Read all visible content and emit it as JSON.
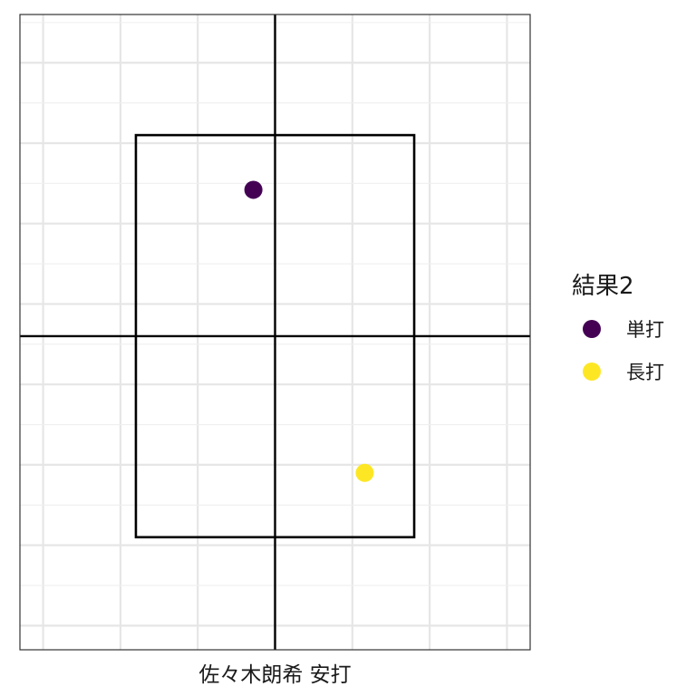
{
  "chart_data": {
    "type": "scatter",
    "title": "",
    "xlabel": "佐々木朗希 安打",
    "ylabel": "",
    "grid": true,
    "legend": {
      "title": "結果2",
      "position": "right",
      "entries": [
        {
          "name": "単打",
          "color": "#440154"
        },
        {
          "name": "長打",
          "color": "#FDE725"
        }
      ]
    },
    "series": [
      {
        "name": "単打",
        "color": "#440154",
        "points": [
          {
            "x": -0.14,
            "y": 3.46
          }
        ]
      },
      {
        "name": "長打",
        "color": "#FDE725",
        "points": [
          {
            "x": 0.58,
            "y": 1.7
          }
        ]
      }
    ],
    "xlim": [
      -1.65,
      1.65
    ],
    "ylim": [
      0.6,
      4.55
    ],
    "strike_zone": {
      "x": [
        -0.9,
        0.9
      ],
      "y": [
        1.3,
        3.8
      ]
    },
    "center_lines": {
      "x": 0,
      "y": 2.55
    }
  }
}
